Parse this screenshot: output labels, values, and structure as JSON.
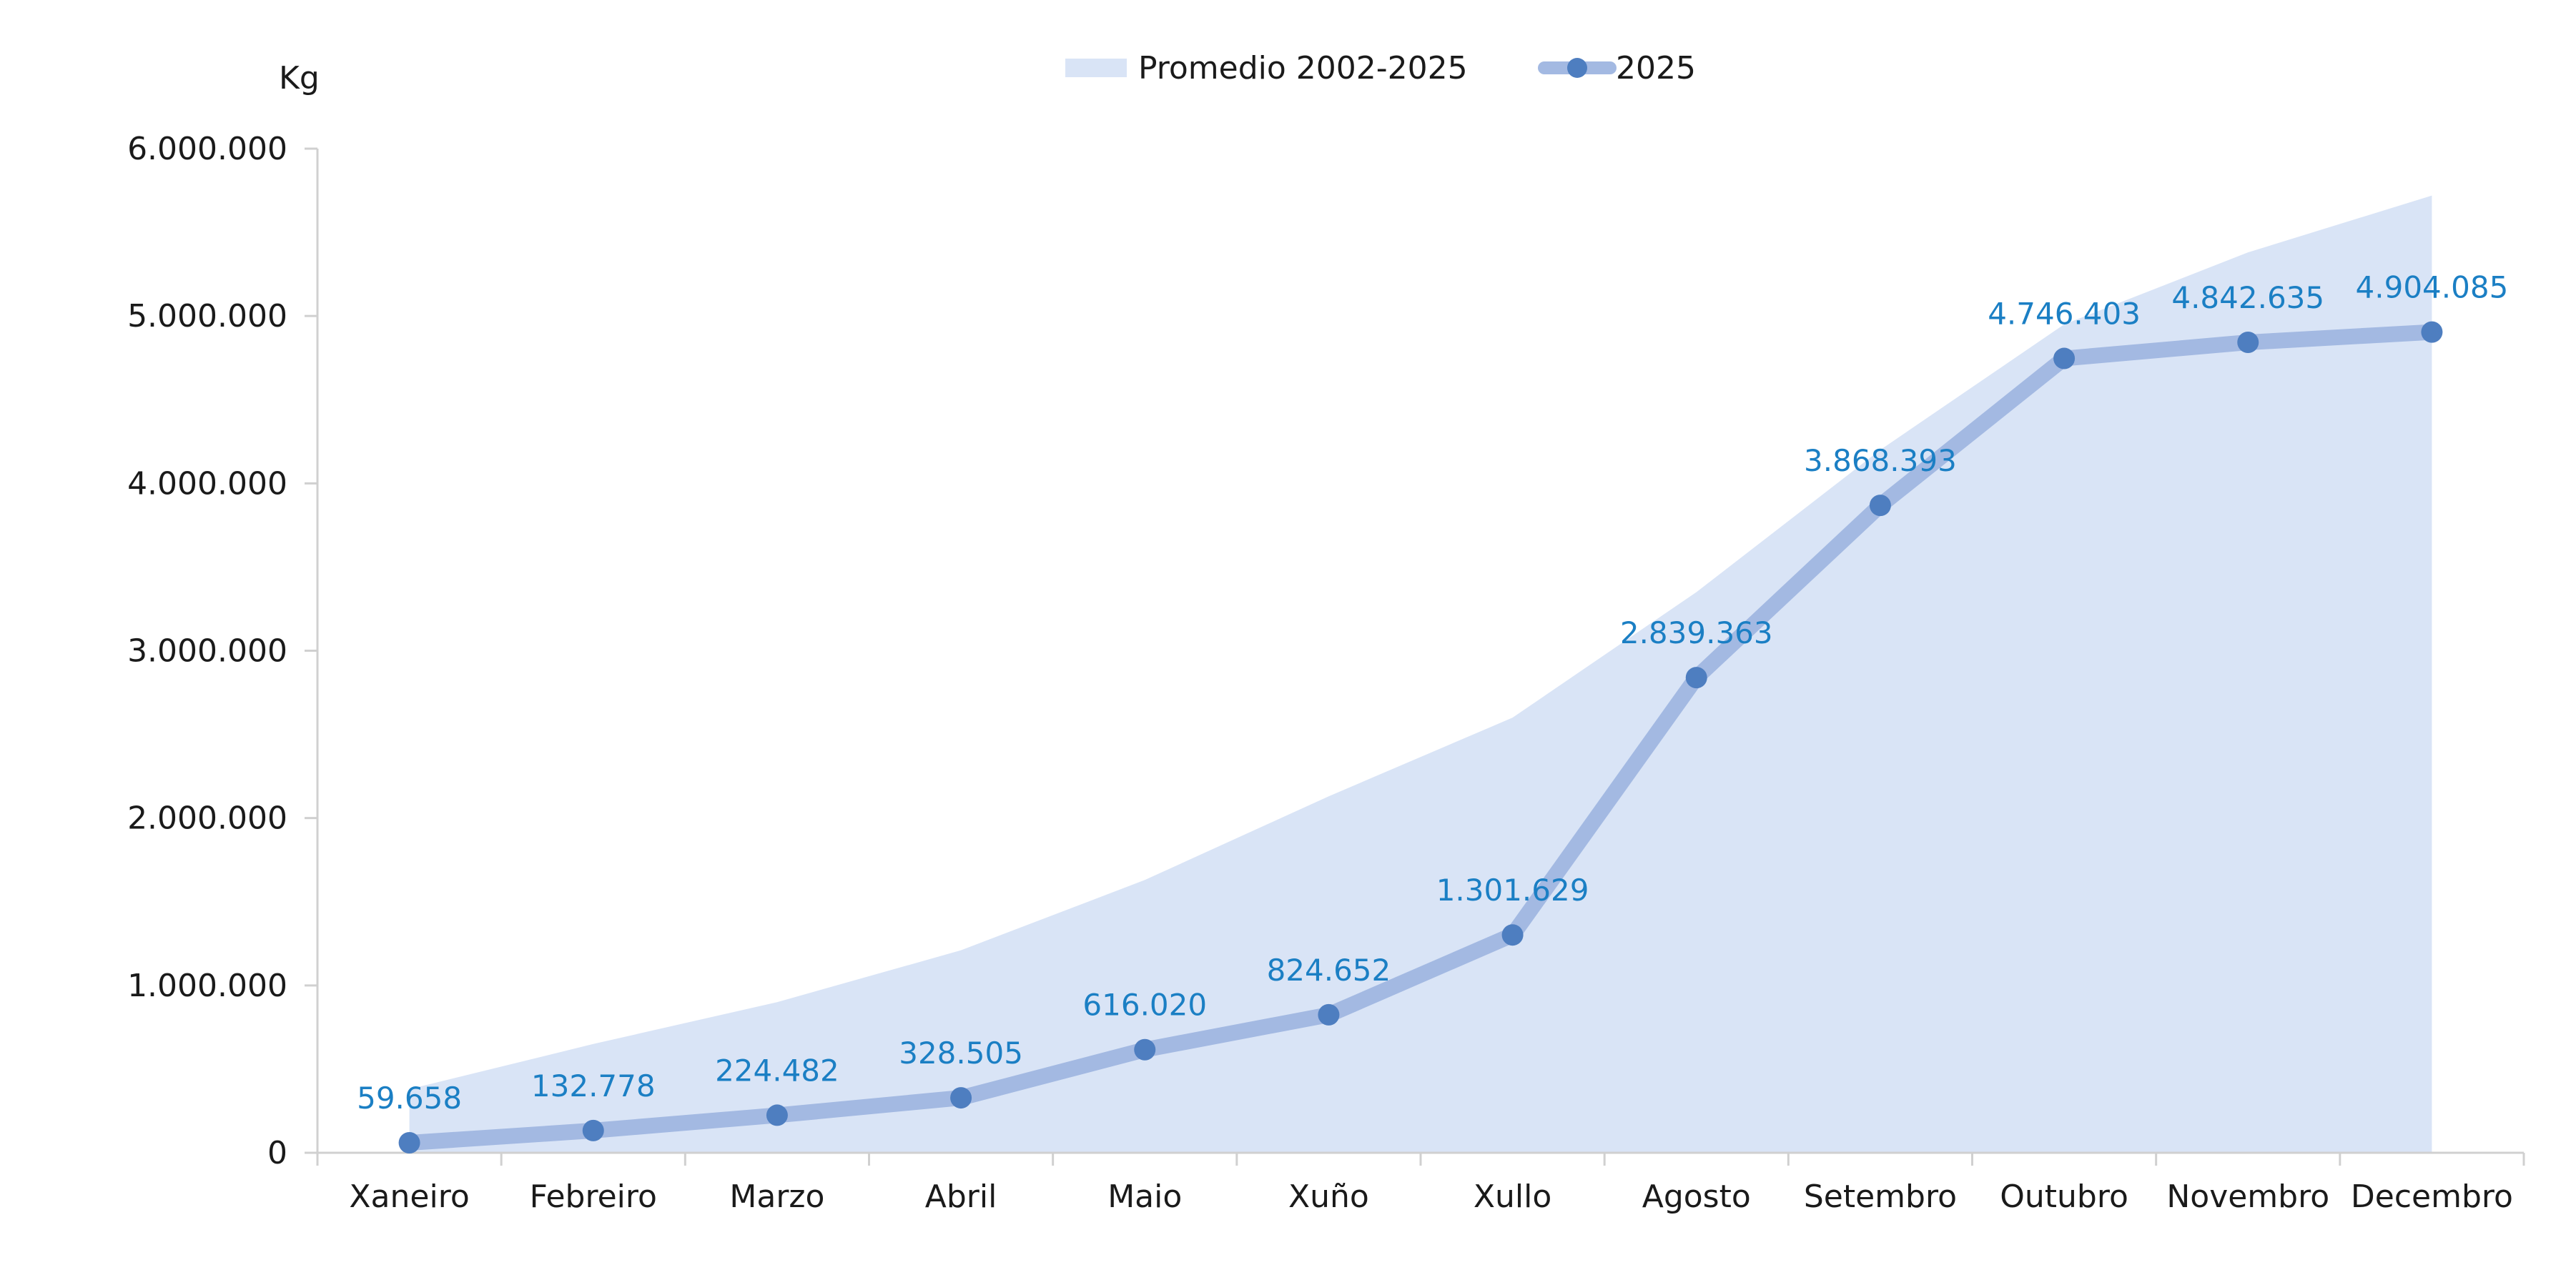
{
  "chart_data": {
    "type": "line",
    "ylabel": "Kg",
    "categories": [
      "Xaneiro",
      "Febreiro",
      "Marzo",
      "Abril",
      "Maio",
      "Xuño",
      "Xullo",
      "Agosto",
      "Setembro",
      "Outubro",
      "Novembro",
      "Decembro"
    ],
    "ylim": [
      0,
      6000000
    ],
    "yticks": [
      0,
      1000000,
      2000000,
      3000000,
      4000000,
      5000000,
      6000000
    ],
    "ytick_labels": [
      "0",
      "1.000.000",
      "2.000.000",
      "3.000.000",
      "4.000.000",
      "5.000.000",
      "6.000.000"
    ],
    "grid": false,
    "legend_position": "top-center",
    "series": [
      {
        "name": "Promedio 2002-2025",
        "type": "area",
        "color": "#d9e4f6",
        "values": [
          380000,
          650000,
          900000,
          1210000,
          1630000,
          2130000,
          2600000,
          3350000,
          4200000,
          4950000,
          5380000,
          5720000
        ]
      },
      {
        "name": "2025",
        "type": "line",
        "color": "#a3b9e2",
        "marker_color": "#4e7ec0",
        "values": [
          59658,
          132778,
          224482,
          328505,
          616020,
          824652,
          1301629,
          2839363,
          3868393,
          4746403,
          4842635,
          4904085
        ],
        "labels": [
          "59.658",
          "132.778",
          "224.482",
          "328.505",
          "616.020",
          "824.652",
          "1.301.629",
          "2.839.363",
          "3.868.393",
          "4.746.403",
          "4.842.635",
          "4.904.085"
        ]
      }
    ]
  }
}
